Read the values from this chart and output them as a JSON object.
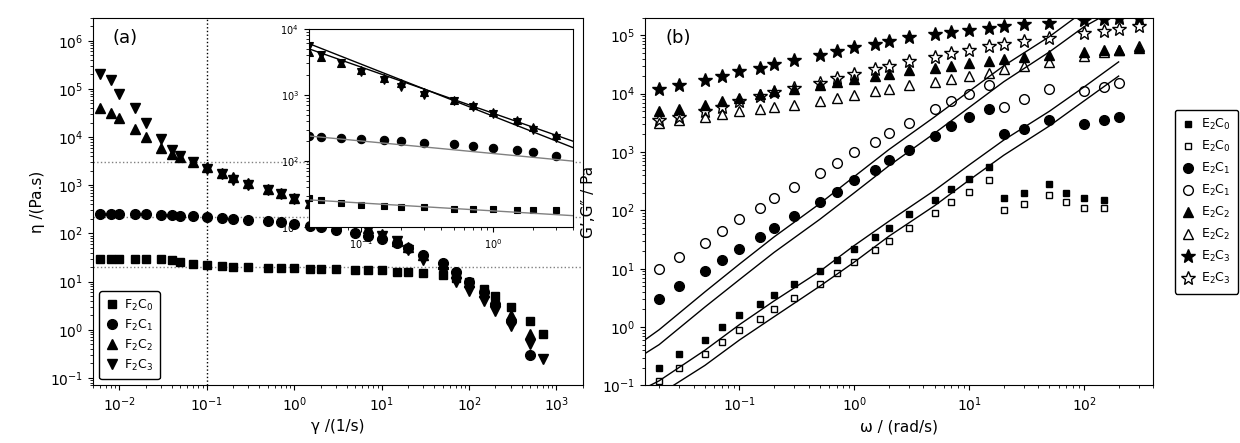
{
  "panel_a": {
    "title": "(a)",
    "xlabel": "γ /(1/s)",
    "ylabel": "η /(Pa.s)",
    "xlim": [
      0.005,
      2000
    ],
    "ylim": [
      0.07,
      3000000.0
    ],
    "dotted_vlines": [
      0.1
    ],
    "dotted_hlines": [
      20,
      220,
      3000
    ],
    "series": [
      {
        "label": "F$_2$C$_0$",
        "marker": "s",
        "filled": true,
        "x": [
          0.006,
          0.008,
          0.01,
          0.015,
          0.02,
          0.03,
          0.04,
          0.05,
          0.07,
          0.1,
          0.15,
          0.2,
          0.3,
          0.5,
          0.7,
          1,
          1.5,
          2,
          3,
          5,
          7,
          10,
          15,
          20,
          30,
          50,
          70,
          100,
          150,
          200,
          300,
          500,
          700,
          1000
        ],
        "y": [
          30,
          30,
          30,
          30,
          30,
          30,
          28,
          26,
          23,
          22,
          21,
          20,
          20,
          19,
          19,
          19,
          18,
          18,
          18,
          17,
          17,
          17,
          16,
          16,
          15,
          14,
          12,
          10,
          7,
          5,
          3,
          1.5,
          0.8,
          0.05
        ]
      },
      {
        "label": "F$_2$C$_1$",
        "marker": "o",
        "filled": true,
        "x": [
          0.006,
          0.008,
          0.01,
          0.015,
          0.02,
          0.03,
          0.04,
          0.05,
          0.07,
          0.1,
          0.15,
          0.2,
          0.3,
          0.5,
          0.7,
          1,
          1.5,
          2,
          3,
          5,
          7,
          10,
          15,
          20,
          30,
          50,
          70,
          100,
          150,
          200,
          300,
          500
        ],
        "y": [
          250,
          250,
          250,
          250,
          250,
          245,
          240,
          235,
          225,
          215,
          205,
          200,
          190,
          180,
          170,
          160,
          145,
          135,
          120,
          100,
          88,
          78,
          62,
          50,
          36,
          24,
          16,
          10,
          6,
          3.5,
          1.5,
          0.3
        ]
      },
      {
        "label": "F$_2$C$_2$",
        "marker": "^",
        "filled": true,
        "x": [
          0.006,
          0.008,
          0.01,
          0.015,
          0.02,
          0.03,
          0.04,
          0.05,
          0.07,
          0.1,
          0.15,
          0.2,
          0.3,
          0.5,
          0.7,
          1,
          1.5,
          2,
          3,
          5,
          7,
          10,
          15,
          20,
          30,
          50,
          70,
          100,
          150,
          200,
          300,
          500
        ],
        "y": [
          40000,
          32000,
          25000,
          15000,
          10000,
          6000,
          4500,
          3800,
          3000,
          2400,
          1800,
          1500,
          1100,
          850,
          700,
          550,
          420,
          330,
          250,
          180,
          130,
          95,
          70,
          52,
          36,
          23,
          15,
          10,
          6,
          4,
          2,
          0.8
        ]
      },
      {
        "label": "F$_2$C$_3$",
        "marker": "v",
        "filled": true,
        "x": [
          0.006,
          0.008,
          0.01,
          0.015,
          0.02,
          0.03,
          0.04,
          0.05,
          0.07,
          0.1,
          0.15,
          0.2,
          0.3,
          0.5,
          0.7,
          1,
          1.5,
          2,
          3,
          5,
          7,
          10,
          15,
          20,
          30,
          50,
          70,
          100,
          150,
          200,
          300,
          500,
          700
        ],
        "y": [
          200000,
          150000,
          80000,
          40000,
          20000,
          9000,
          5500,
          4000,
          3000,
          2200,
          1700,
          1300,
          1000,
          800,
          650,
          520,
          390,
          300,
          220,
          160,
          120,
          90,
          68,
          45,
          28,
          16,
          10,
          6.5,
          4,
          2.5,
          1.2,
          0.5,
          0.25
        ]
      }
    ],
    "inset": {
      "xlim": [
        0.04,
        4
      ],
      "ylim": [
        10,
        10000
      ],
      "series": [
        {
          "marker": "s",
          "x": [
            0.04,
            0.05,
            0.07,
            0.1,
            0.15,
            0.2,
            0.3,
            0.5,
            0.7,
            1,
            1.5,
            2,
            3
          ],
          "y": [
            28,
            26,
            23,
            22,
            21,
            20,
            20,
            19,
            19,
            19,
            18,
            18,
            18
          ],
          "fit_x": [
            0.04,
            4
          ],
          "fit_y": [
            26,
            15
          ],
          "fit_color": "gray"
        },
        {
          "marker": "o",
          "x": [
            0.04,
            0.05,
            0.07,
            0.1,
            0.15,
            0.2,
            0.3,
            0.5,
            0.7,
            1,
            1.5,
            2,
            3
          ],
          "y": [
            240,
            235,
            225,
            215,
            205,
            200,
            190,
            180,
            170,
            160,
            145,
            135,
            120
          ],
          "fit_x": [
            0.04,
            4
          ],
          "fit_y": [
            240,
            100
          ],
          "fit_color": "gray"
        },
        {
          "marker": "^",
          "x": [
            0.04,
            0.05,
            0.07,
            0.1,
            0.15,
            0.2,
            0.3,
            0.5,
            0.7,
            1,
            1.5,
            2,
            3
          ],
          "y": [
            4500,
            3800,
            3000,
            2400,
            1800,
            1500,
            1100,
            850,
            700,
            550,
            420,
            330,
            250
          ],
          "fit_x": [
            0.04,
            4
          ],
          "fit_y": [
            5000,
            200
          ],
          "fit_color": "black"
        },
        {
          "marker": "v",
          "x": [
            0.04,
            0.05,
            0.07,
            0.1,
            0.15,
            0.2,
            0.3,
            0.5,
            0.7,
            1,
            1.5,
            2,
            3
          ],
          "y": [
            5500,
            4000,
            3000,
            2200,
            1700,
            1300,
            1000,
            800,
            650,
            520,
            390,
            300,
            220
          ],
          "fit_x": [
            0.04,
            4
          ],
          "fit_y": [
            6000,
            160
          ],
          "fit_color": "black"
        }
      ]
    }
  },
  "panel_b": {
    "title": "(b)",
    "xlabel": "ω / (rad/s)",
    "ylabel": "G’,G″ / Pa",
    "xlim": [
      0.015,
      400
    ],
    "ylim": [
      0.1,
      200000.0
    ],
    "series": [
      {
        "label": "E$_2$C$_0$ G'",
        "marker": "s",
        "filled": true,
        "x": [
          0.02,
          0.03,
          0.05,
          0.07,
          0.1,
          0.15,
          0.2,
          0.3,
          0.5,
          0.7,
          1,
          1.5,
          2,
          3,
          5,
          7,
          10,
          15,
          20,
          30,
          50,
          70,
          100,
          150
        ],
        "y": [
          0.2,
          0.35,
          0.6,
          1.0,
          1.6,
          2.5,
          3.5,
          5.5,
          9,
          14,
          22,
          35,
          50,
          85,
          150,
          230,
          350,
          550,
          160,
          200,
          280,
          200,
          160,
          150
        ]
      },
      {
        "label": "E$_2$C$_0$ G''",
        "marker": "s",
        "filled": false,
        "x": [
          0.02,
          0.03,
          0.05,
          0.07,
          0.1,
          0.15,
          0.2,
          0.3,
          0.5,
          0.7,
          1,
          1.5,
          2,
          3,
          5,
          7,
          10,
          15,
          20,
          30,
          50,
          70,
          100,
          150
        ],
        "y": [
          0.12,
          0.2,
          0.35,
          0.55,
          0.9,
          1.4,
          2.0,
          3.2,
          5.5,
          8.5,
          13,
          21,
          30,
          50,
          90,
          140,
          210,
          330,
          100,
          130,
          180,
          140,
          110,
          110
        ]
      },
      {
        "label": "E$_2$C$_1$ G'",
        "marker": "o",
        "filled": true,
        "x": [
          0.02,
          0.03,
          0.05,
          0.07,
          0.1,
          0.15,
          0.2,
          0.3,
          0.5,
          0.7,
          1,
          1.5,
          2,
          3,
          5,
          7,
          10,
          15,
          20,
          30,
          50,
          100,
          150,
          200
        ],
        "y": [
          3,
          5,
          9,
          14,
          22,
          35,
          50,
          80,
          140,
          210,
          330,
          500,
          720,
          1100,
          1900,
          2800,
          4000,
          5500,
          2000,
          2500,
          3500,
          3000,
          3500,
          4000
        ]
      },
      {
        "label": "E$_2$C$_1$ G''",
        "marker": "o",
        "filled": false,
        "x": [
          0.02,
          0.03,
          0.05,
          0.07,
          0.1,
          0.15,
          0.2,
          0.3,
          0.5,
          0.7,
          1,
          1.5,
          2,
          3,
          5,
          7,
          10,
          15,
          20,
          30,
          50,
          100,
          150,
          200
        ],
        "y": [
          10,
          16,
          28,
          44,
          70,
          110,
          160,
          250,
          430,
          640,
          1000,
          1500,
          2100,
          3200,
          5500,
          7500,
          10000,
          14000,
          6000,
          8000,
          12000,
          11000,
          13000,
          15000
        ]
      },
      {
        "label": "E$_2$C$_2$ G'",
        "marker": "^",
        "filled": true,
        "x": [
          0.02,
          0.03,
          0.05,
          0.07,
          0.1,
          0.15,
          0.2,
          0.3,
          0.5,
          0.7,
          1,
          1.5,
          2,
          3,
          5,
          7,
          10,
          15,
          20,
          30,
          50,
          100,
          150,
          200,
          300
        ],
        "y": [
          5000,
          5500,
          6500,
          7500,
          8500,
          10000,
          11000,
          12000,
          14000,
          16000,
          18000,
          20000,
          22000,
          25000,
          28000,
          30000,
          33000,
          36000,
          39000,
          42000,
          46000,
          52000,
          55000,
          57000,
          60000
        ]
      },
      {
        "label": "E$_2$C$_2$ G''",
        "marker": "^",
        "filled": false,
        "x": [
          0.02,
          0.03,
          0.05,
          0.07,
          0.1,
          0.15,
          0.2,
          0.3,
          0.5,
          0.7,
          1,
          1.5,
          2,
          3,
          5,
          7,
          10,
          15,
          20,
          30,
          50,
          100,
          150,
          200,
          300
        ],
        "y": [
          3200,
          3500,
          4000,
          4500,
          5000,
          5500,
          6000,
          6500,
          7500,
          8500,
          9500,
          11000,
          12000,
          14000,
          16000,
          18000,
          20000,
          23000,
          26000,
          30000,
          35000,
          45000,
          52000,
          57000,
          65000
        ]
      },
      {
        "label": "E$_2$C$_3$ G'",
        "marker": "*",
        "filled": true,
        "x": [
          0.02,
          0.03,
          0.05,
          0.07,
          0.1,
          0.15,
          0.2,
          0.3,
          0.5,
          0.7,
          1,
          1.5,
          2,
          3,
          5,
          7,
          10,
          15,
          20,
          30,
          50,
          100,
          150,
          200,
          300
        ],
        "y": [
          12000,
          14000,
          17000,
          20000,
          24000,
          28000,
          32000,
          38000,
          46000,
          54000,
          62000,
          72000,
          80000,
          92000,
          105000,
          115000,
          125000,
          135000,
          145000,
          155000,
          165000,
          180000,
          190000,
          195000,
          200000
        ]
      },
      {
        "label": "E$_2$C$_3$ G''",
        "marker": "*",
        "filled": false,
        "x": [
          0.02,
          0.03,
          0.05,
          0.07,
          0.1,
          0.15,
          0.2,
          0.3,
          0.5,
          0.7,
          1,
          1.5,
          2,
          3,
          5,
          7,
          10,
          15,
          20,
          30,
          50,
          100,
          150,
          200,
          300
        ],
        "y": [
          3500,
          4000,
          5000,
          6000,
          7500,
          9000,
          10500,
          12500,
          15500,
          18500,
          22000,
          26000,
          30000,
          36000,
          43000,
          50000,
          57000,
          65000,
          72000,
          80000,
          90000,
          110000,
          120000,
          130000,
          145000
        ]
      }
    ],
    "fit_curves": [
      {
        "x": [
          0.015,
          0.02,
          0.05,
          0.1,
          0.2,
          0.5,
          1,
          2,
          5,
          10,
          20,
          50,
          100,
          200
        ],
        "y": [
          0.09,
          0.12,
          0.4,
          1.1,
          2.8,
          9,
          25,
          65,
          220,
          600,
          1600,
          5000,
          13000,
          35000
        ]
      },
      {
        "x": [
          0.015,
          0.02,
          0.05,
          0.1,
          0.2,
          0.5,
          1,
          2,
          5,
          10,
          20,
          50,
          100,
          200
        ],
        "y": [
          0.05,
          0.07,
          0.22,
          0.6,
          1.5,
          5,
          13,
          36,
          120,
          330,
          880,
          2800,
          7500,
          20000
        ]
      },
      {
        "x": [
          0.015,
          0.02,
          0.05,
          0.1,
          0.2,
          0.5,
          1,
          2,
          5,
          10,
          20,
          50,
          100,
          200
        ],
        "y": [
          0.6,
          0.9,
          4,
          12,
          35,
          130,
          380,
          1100,
          4000,
          11000,
          30000,
          95000,
          260000,
          550000
        ]
      },
      {
        "x": [
          0.015,
          0.02,
          0.05,
          0.1,
          0.2,
          0.5,
          1,
          2,
          5,
          10,
          20,
          50,
          100,
          200
        ],
        "y": [
          0.35,
          0.5,
          2.2,
          6.5,
          19,
          70,
          200,
          580,
          2100,
          5800,
          16000,
          52000,
          140000,
          300000
        ]
      }
    ]
  },
  "legend_a_labels": [
    "F$_2$C$_0$",
    "F$_2$C$_1$",
    "F$_2$C$_2$",
    "F$_2$C$_3$"
  ],
  "legend_a_markers": [
    "s",
    "o",
    "^",
    "v"
  ],
  "legend_b_labels": [
    "E$_2$C$_0$",
    "E$_2$C$_0$",
    "E$_2$C$_1$",
    "E$_2$C$_1$",
    "E$_2$C$_2$",
    "E$_2$C$_2$",
    "E$_2$C$_3$",
    "E$_2$C$_3$"
  ],
  "legend_b_markers": [
    "s",
    "s",
    "o",
    "o",
    "^",
    "^",
    "*",
    "*"
  ],
  "legend_b_filled": [
    true,
    false,
    true,
    false,
    true,
    false,
    true,
    false
  ]
}
